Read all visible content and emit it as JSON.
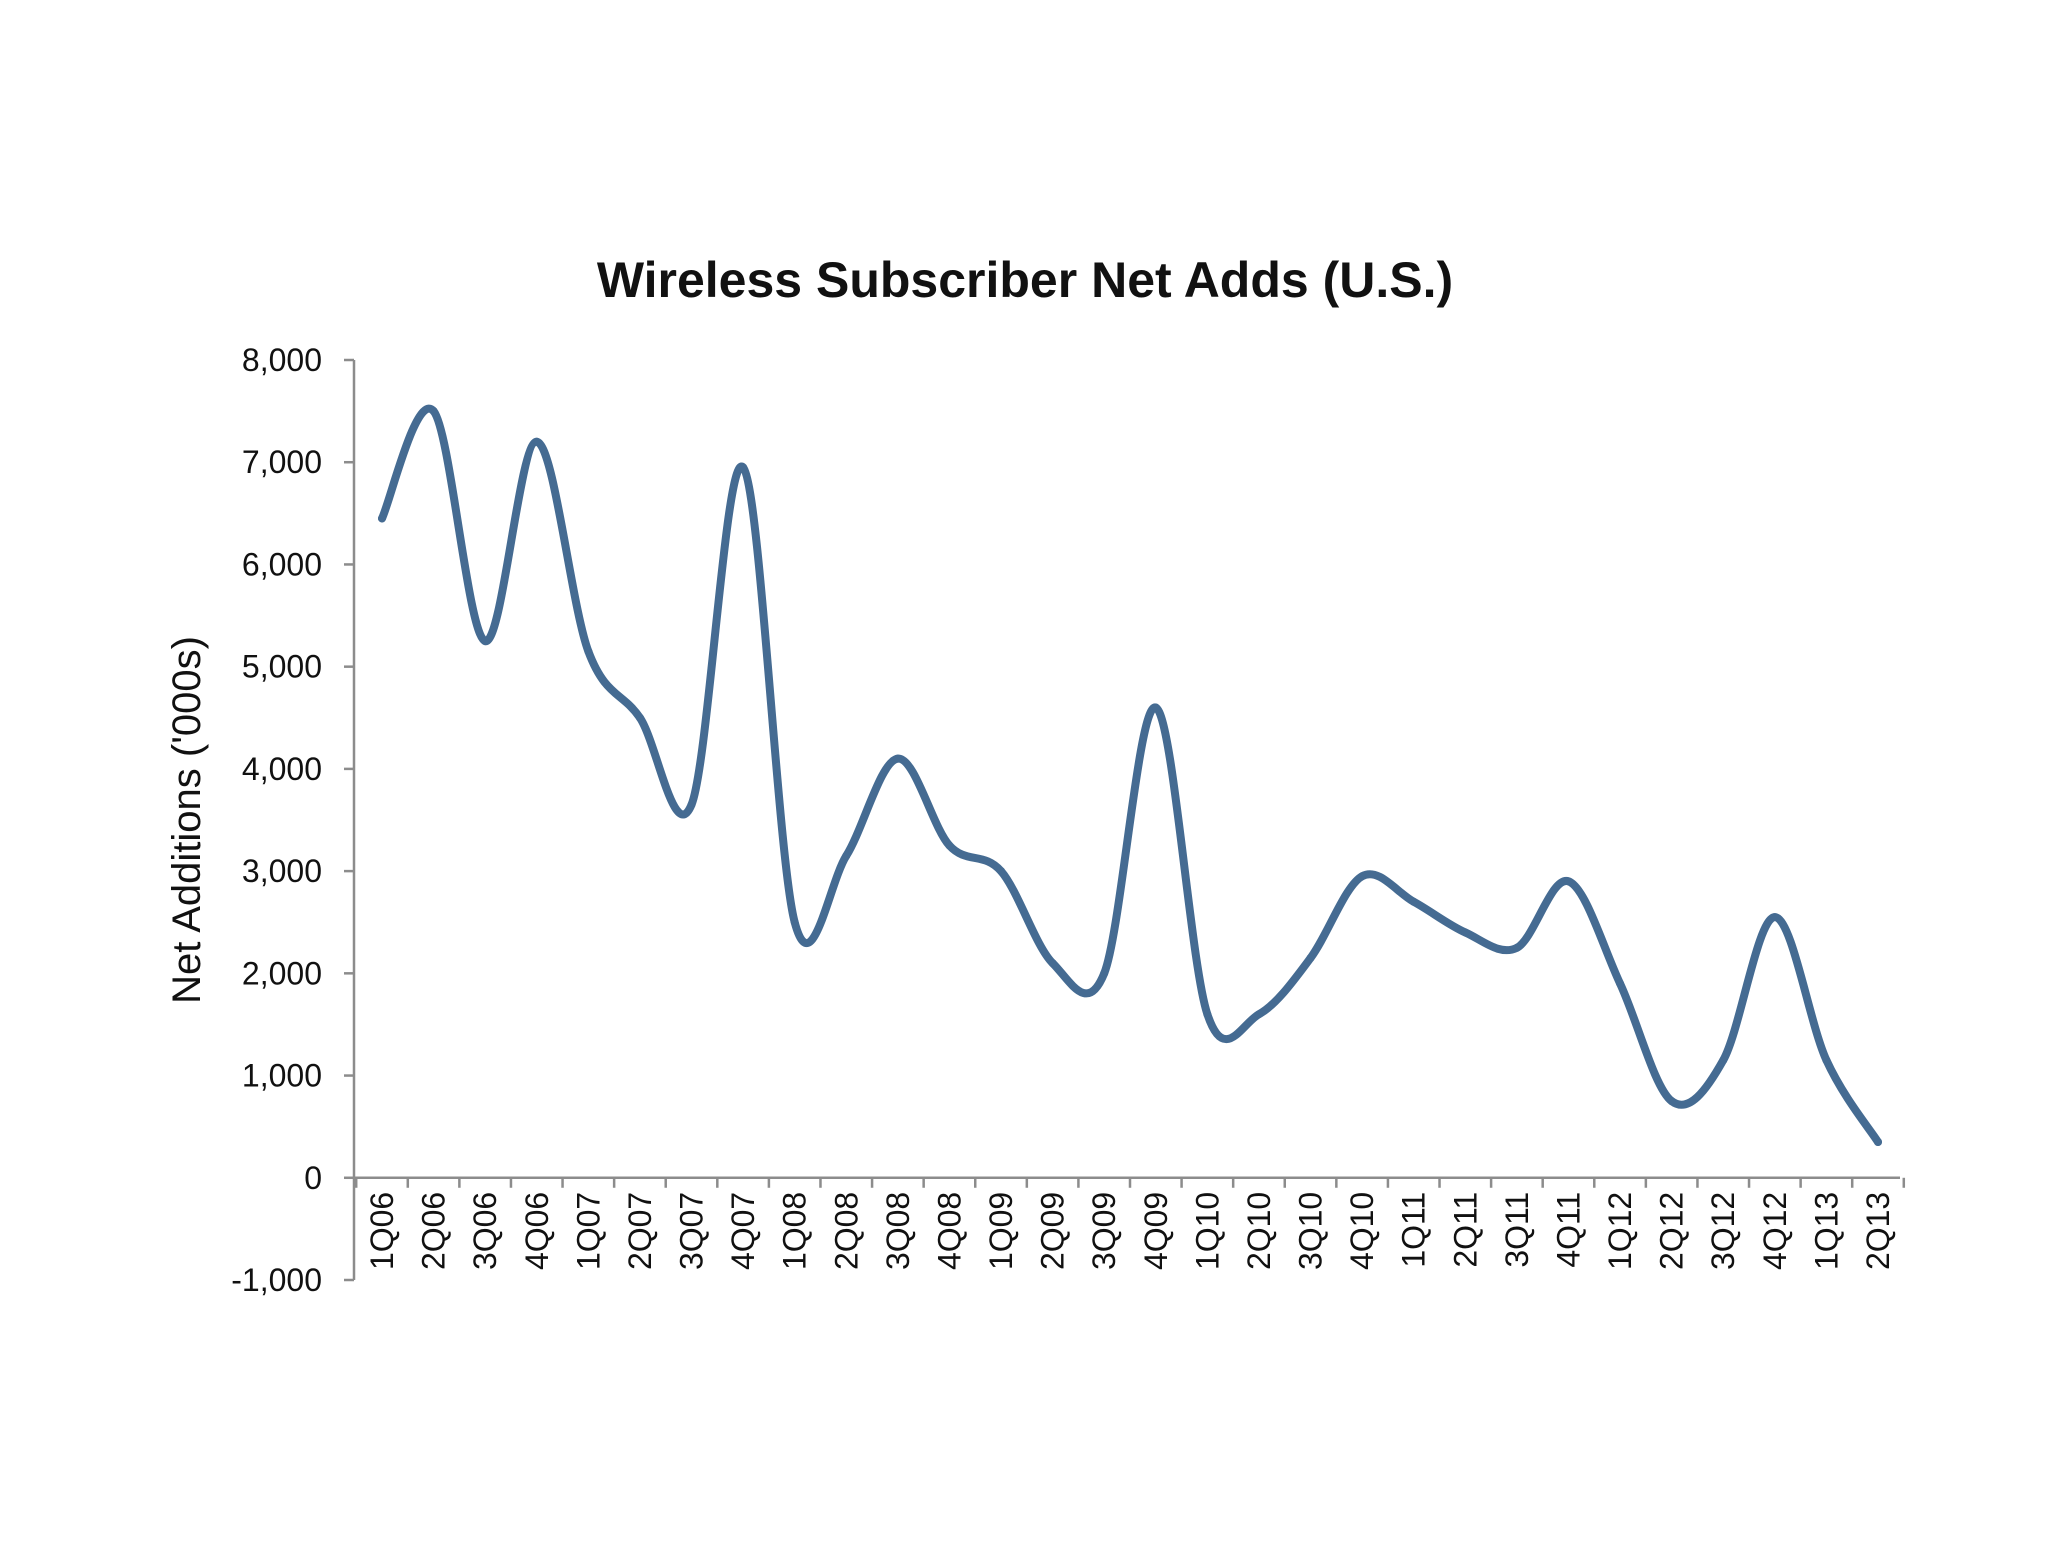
{
  "chart_data": {
    "type": "line",
    "title": "Wireless Subscriber Net Adds (U.S.)",
    "xlabel": "",
    "ylabel": "Net Additions ('000s)",
    "ylim": [
      -1000,
      8000
    ],
    "yticks": [
      -1000,
      0,
      1000,
      2000,
      3000,
      4000,
      5000,
      6000,
      7000,
      8000
    ],
    "ytick_labels": [
      "-1,000",
      "0",
      "1,000",
      "2,000",
      "3,000",
      "4,000",
      "5,000",
      "6,000",
      "7,000",
      "8,000"
    ],
    "grid": false,
    "legend": "none",
    "categories": [
      "1Q06",
      "2Q06",
      "3Q06",
      "4Q06",
      "1Q07",
      "2Q07",
      "3Q07",
      "4Q07",
      "1Q08",
      "2Q08",
      "3Q08",
      "4Q08",
      "1Q09",
      "2Q09",
      "3Q09",
      "4Q09",
      "1Q10",
      "2Q10",
      "3Q10",
      "4Q10",
      "1Q11",
      "2Q11",
      "3Q11",
      "4Q11",
      "1Q12",
      "2Q12",
      "3Q12",
      "4Q12",
      "1Q13",
      "2Q13"
    ],
    "series": [
      {
        "name": "Net Additions",
        "color": "#456B92",
        "values": [
          6450,
          7500,
          5250,
          7200,
          5150,
          4500,
          3650,
          6950,
          2500,
          3150,
          4100,
          3250,
          3000,
          2100,
          2000,
          4600,
          1600,
          1600,
          2150,
          2950,
          2700,
          2400,
          2250,
          2900,
          1900,
          750,
          1150,
          2550,
          1150,
          350
        ]
      }
    ]
  }
}
